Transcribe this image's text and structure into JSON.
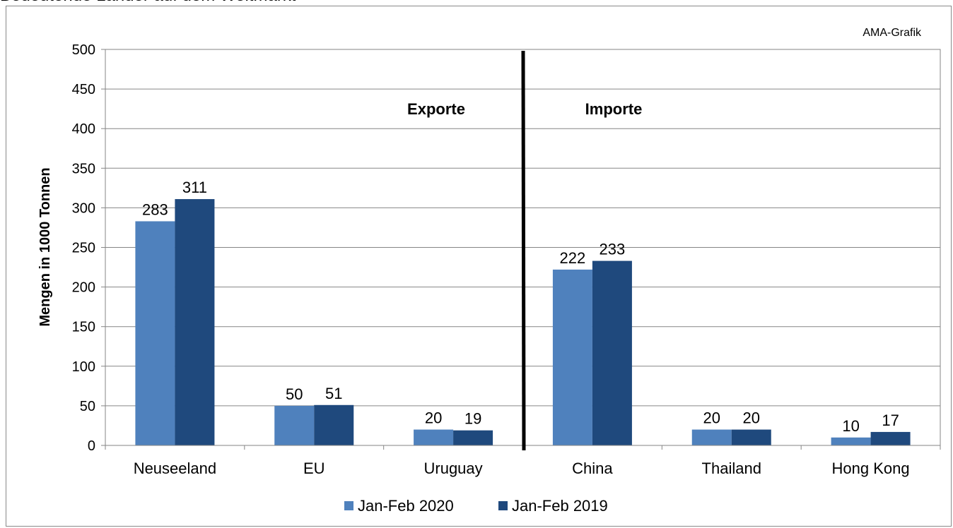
{
  "page_title": "Bedeutende Länder auf dem Weltmarkt",
  "chart_data": {
    "type": "bar",
    "title": "",
    "source_note": "AMA-Grafik",
    "ylabel": "Mengen in 1000 Tonnen",
    "xlabel": "",
    "ylim": [
      0,
      500
    ],
    "yticks": [
      "0",
      "50",
      "100",
      "150",
      "200",
      "250",
      "300",
      "350",
      "400",
      "450",
      "500"
    ],
    "categories": [
      "Neuseeland",
      "EU",
      "Uruguay",
      "China",
      "Thailand",
      "Hong Kong"
    ],
    "series": [
      {
        "name": "Jan-Feb 2020",
        "color": "#4f81bd",
        "values": [
          283,
          50,
          20,
          222,
          20,
          10
        ]
      },
      {
        "name": "Jan-Feb 2019",
        "color": "#1f497d",
        "values": [
          311,
          51,
          19,
          233,
          20,
          17
        ]
      }
    ],
    "annotations": {
      "exports": "Exporte",
      "imports": "Importe"
    },
    "grid": true,
    "legend_position": "bottom"
  }
}
